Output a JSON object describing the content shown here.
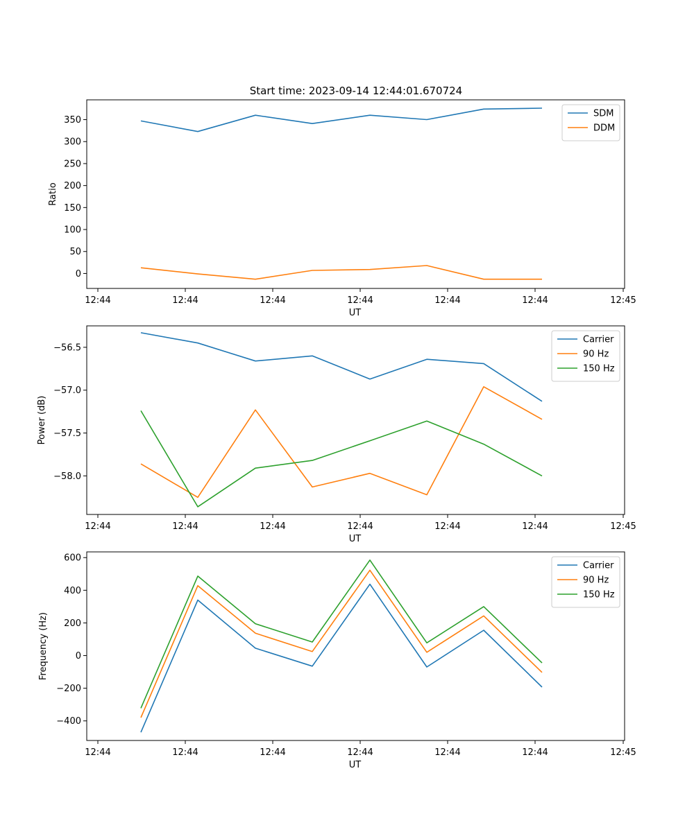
{
  "figure": {
    "title": "Start time: 2023-09-14 12:44:01.670724"
  },
  "chart_data": [
    {
      "type": "line",
      "xlabel": "UT",
      "ylabel": "Ratio",
      "xticks": [
        "12:44",
        "12:44",
        "12:44",
        "12:44",
        "12:44",
        "12:44",
        "12:45"
      ],
      "ylim": [
        -34,
        395
      ],
      "yticks": [
        0,
        50,
        100,
        150,
        200,
        250,
        300,
        350
      ],
      "ytick_labels": [
        "0",
        "50",
        "100",
        "150",
        "200",
        "250",
        "300",
        "350"
      ],
      "legend": "top-right",
      "series": [
        {
          "name": "SDM",
          "color": "#1f77b4",
          "values": [
            347,
            323,
            360,
            341,
            360,
            350,
            374,
            376
          ]
        },
        {
          "name": "DDM",
          "color": "#ff7f0e",
          "values": [
            13,
            -1,
            -13,
            7,
            9,
            18,
            -13,
            -13
          ]
        }
      ]
    },
    {
      "type": "line",
      "xlabel": "UT",
      "ylabel": "Power (dB)",
      "xticks": [
        "12:44",
        "12:44",
        "12:44",
        "12:44",
        "12:44",
        "12:44",
        "12:45"
      ],
      "ylim": [
        -58.45,
        -56.25
      ],
      "yticks": [
        -58.0,
        -57.5,
        -57.0,
        -56.5
      ],
      "ytick_labels": [
        "−58.0",
        "−57.5",
        "−57.0",
        "−56.5"
      ],
      "legend": "top-right",
      "series": [
        {
          "name": "Carrier",
          "color": "#1f77b4",
          "values": [
            -56.33,
            -56.45,
            -56.66,
            -56.6,
            -56.87,
            -56.64,
            -56.69,
            -57.13
          ]
        },
        {
          "name": "90 Hz",
          "color": "#ff7f0e",
          "values": [
            -57.86,
            -58.25,
            -57.23,
            -58.13,
            -57.97,
            -58.22,
            -56.96,
            -57.34
          ]
        },
        {
          "name": "150 Hz",
          "color": "#2ca02c",
          "values": [
            -57.24,
            -58.36,
            -57.91,
            -57.82,
            -57.59,
            -57.36,
            -57.63,
            -58.0
          ]
        }
      ]
    },
    {
      "type": "line",
      "xlabel": "UT",
      "ylabel": "Frequency (Hz)",
      "xticks": [
        "12:44",
        "12:44",
        "12:44",
        "12:44",
        "12:44",
        "12:44",
        "12:45"
      ],
      "ylim": [
        -520,
        635
      ],
      "yticks": [
        -400,
        -200,
        0,
        200,
        400,
        600
      ],
      "ytick_labels": [
        "−400",
        "−200",
        "0",
        "200",
        "400",
        "600"
      ],
      "legend": "top-right",
      "series": [
        {
          "name": "Carrier",
          "color": "#1f77b4",
          "values": [
            -470,
            340,
            45,
            -65,
            437,
            -70,
            155,
            -193
          ]
        },
        {
          "name": "90 Hz",
          "color": "#ff7f0e",
          "values": [
            -380,
            428,
            137,
            25,
            523,
            20,
            243,
            -103
          ]
        },
        {
          "name": "150 Hz",
          "color": "#2ca02c",
          "values": [
            -322,
            487,
            195,
            83,
            585,
            78,
            300,
            -45
          ]
        }
      ]
    }
  ]
}
